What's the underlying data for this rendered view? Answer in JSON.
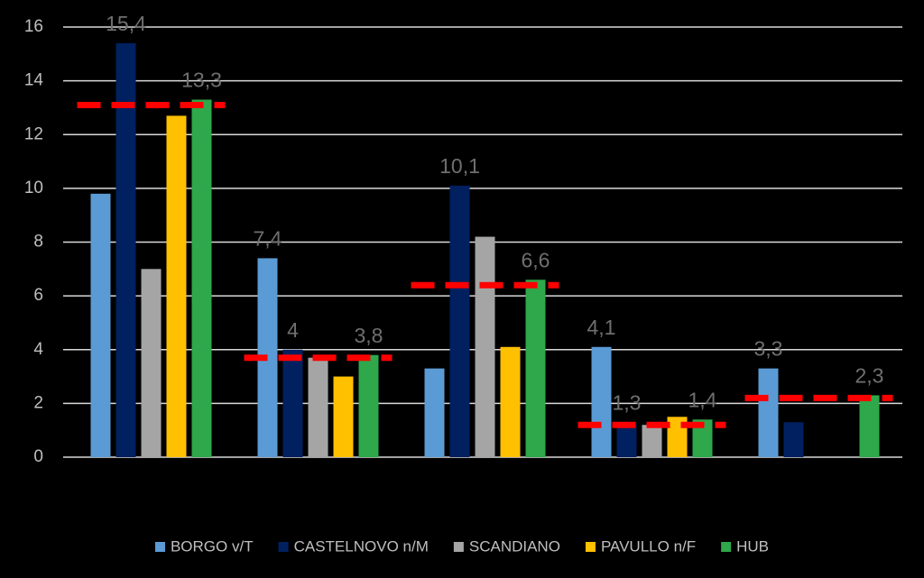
{
  "chart_data": {
    "type": "bar",
    "categories": [
      null,
      null,
      null,
      null,
      null
    ],
    "series": [
      {
        "name": "BORGO v/T",
        "color": "#5b9bd5",
        "values": [
          9.8,
          7.4,
          3.3,
          4.1,
          3.3
        ],
        "value_labels": [
          null,
          "7,4",
          null,
          "4,1",
          "3,3"
        ]
      },
      {
        "name": "CASTELNOVO n/M",
        "color": "#002060",
        "values": [
          15.4,
          4,
          10.1,
          1.3,
          1.3
        ],
        "value_labels": [
          "15,4",
          "4",
          "10,1",
          "1,3",
          null
        ]
      },
      {
        "name": "SCANDIANO",
        "color": "#a5a5a5",
        "values": [
          7.0,
          3.7,
          8.2,
          1.2,
          null
        ],
        "value_labels": [
          null,
          null,
          null,
          null,
          null
        ]
      },
      {
        "name": "PAVULLO n/F",
        "color": "#ffc000",
        "values": [
          12.7,
          3.0,
          4.1,
          1.5,
          null
        ],
        "value_labels": [
          null,
          null,
          null,
          null,
          null
        ]
      },
      {
        "name": "HUB",
        "color": "#2ea84a",
        "values": [
          13.3,
          3.8,
          6.6,
          1.4,
          2.3
        ],
        "value_labels": [
          "13,3",
          "3,8",
          "6,6",
          "1,4",
          "2,3"
        ]
      }
    ],
    "reference_values": [
      13.1,
      3.7,
      6.4,
      1.2,
      2.2
    ],
    "reference_color": "#ff0000",
    "ylim": [
      0,
      16
    ],
    "yticks": [
      0,
      2,
      4,
      6,
      8,
      10,
      12,
      14,
      16
    ],
    "grid": true,
    "legend": "bottom"
  }
}
